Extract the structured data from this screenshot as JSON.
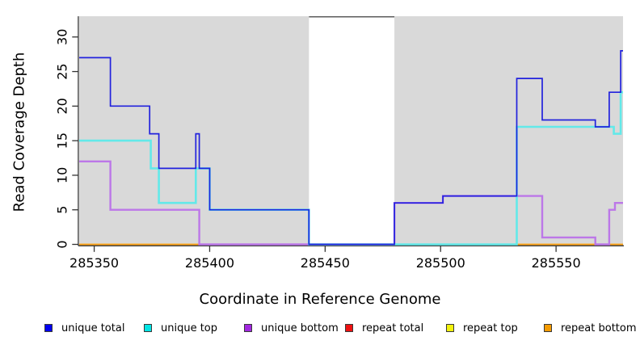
{
  "figure": {
    "x_axis_title": "Coordinate in Reference Genome",
    "y_axis_title": "Read Coverage Depth"
  },
  "legend": {
    "items": [
      {
        "label": "unique total",
        "color": "#0000f0"
      },
      {
        "label": "unique top",
        "color": "#00e5e5"
      },
      {
        "label": "unique bottom",
        "color": "#a228e0"
      },
      {
        "label": "repeat total",
        "color": "#ee1111"
      },
      {
        "label": "repeat top",
        "color": "#f2f20c"
      },
      {
        "label": "repeat bottom",
        "color": "#f59b00"
      }
    ]
  },
  "chart_data": {
    "type": "line",
    "subtype": "step-coverage",
    "title": "",
    "xlabel": "Coordinate in Reference Genome",
    "ylabel": "Read Coverage Depth",
    "xlim": [
      285343.5,
      285579
    ],
    "ylim": [
      0,
      33
    ],
    "x_ticks": [
      285350,
      285400,
      285450,
      285500,
      285550
    ],
    "y_ticks": [
      0,
      5,
      10,
      15,
      20,
      25,
      30
    ],
    "grid": false,
    "plot_bg": "#d9d9d9",
    "masked_region": {
      "x0": 285443,
      "x1": 285480,
      "fill": "#ffffff",
      "top_border": "#4d4d4d"
    },
    "series": [
      {
        "name": "repeat total",
        "line_color": "#e03030",
        "width": 1.8,
        "steps": [
          [
            285343.5,
            0
          ]
        ]
      },
      {
        "name": "repeat top",
        "line_color": "#f0f060",
        "width": 1.8,
        "steps": [
          [
            285343.5,
            0
          ]
        ]
      },
      {
        "name": "repeat bottom",
        "line_color": "#ffa217",
        "width": 1.8,
        "steps": [
          [
            285343.5,
            0
          ]
        ]
      },
      {
        "name": "unique bottom",
        "line_color": "#bc77e8",
        "width": 2.4,
        "steps": [
          [
            285343.5,
            12
          ],
          [
            285357,
            5
          ],
          [
            285395.5,
            0
          ],
          [
            285480,
            6
          ],
          [
            285501,
            7
          ],
          [
            285544,
            1
          ],
          [
            285567,
            0
          ],
          [
            285573,
            5
          ],
          [
            285575.5,
            6
          ]
        ]
      },
      {
        "name": "unique top",
        "line_color": "#63e9e9",
        "width": 2.6,
        "steps": [
          [
            285343.5,
            15
          ],
          [
            285374.5,
            11
          ],
          [
            285378,
            6
          ],
          [
            285394,
            11
          ],
          [
            285400,
            5
          ],
          [
            285443,
            0
          ],
          [
            285533,
            17
          ],
          [
            285575,
            16
          ],
          [
            285578,
            22
          ]
        ]
      },
      {
        "name": "unique total",
        "line_color": "#2222dd",
        "width": 1.7,
        "steps": [
          [
            285343.5,
            27
          ],
          [
            285357,
            20
          ],
          [
            285374,
            16
          ],
          [
            285378,
            11
          ],
          [
            285394,
            16
          ],
          [
            285395.5,
            11
          ],
          [
            285400,
            5
          ],
          [
            285443,
            0
          ],
          [
            285480,
            6
          ],
          [
            285501,
            7
          ],
          [
            285533,
            24
          ],
          [
            285544,
            18
          ],
          [
            285567,
            17
          ],
          [
            285573,
            22
          ],
          [
            285578,
            28
          ]
        ]
      }
    ]
  }
}
